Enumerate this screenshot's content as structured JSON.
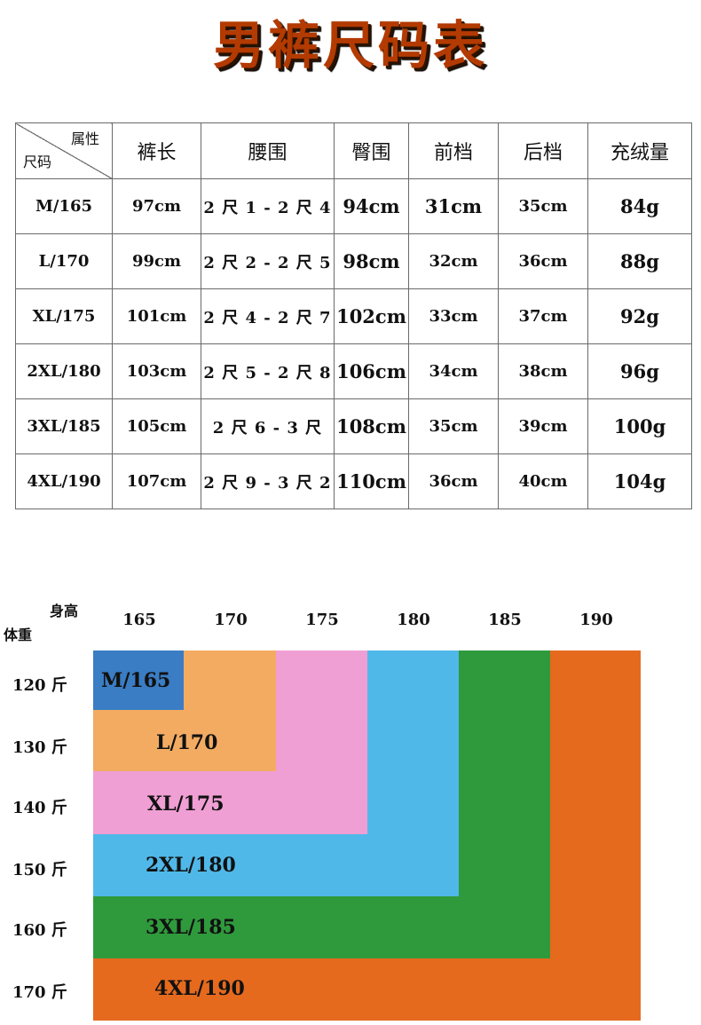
{
  "title": "男裤尺码表",
  "table": {
    "corner_top": "属性",
    "corner_bottom": "尺码",
    "headers": [
      "裤长",
      "腰围",
      "臀围",
      "前档",
      "后档",
      "充绒量"
    ],
    "rows": [
      {
        "size": "M/165",
        "length": "97cm",
        "waist": "2 尺 1 - 2 尺 4",
        "hip": "94cm",
        "front": "31cm",
        "back": "35cm",
        "fill": "84g"
      },
      {
        "size": "L/170",
        "length": "99cm",
        "waist": "2 尺 2 - 2 尺 5",
        "hip": "98cm",
        "front": "32cm",
        "back": "36cm",
        "fill": "88g"
      },
      {
        "size": "XL/175",
        "length": "101cm",
        "waist": "2 尺 4 - 2 尺 7",
        "hip": "102cm",
        "front": "33cm",
        "back": "37cm",
        "fill": "92g"
      },
      {
        "size": "2XL/180",
        "length": "103cm",
        "waist": "2 尺 5 - 2 尺 8",
        "hip": "106cm",
        "front": "34cm",
        "back": "38cm",
        "fill": "96g"
      },
      {
        "size": "3XL/185",
        "length": "105cm",
        "waist": "2 尺 6 - 3 尺",
        "hip": "108cm",
        "front": "35cm",
        "back": "39cm",
        "fill": "100g"
      },
      {
        "size": "4XL/190",
        "length": "107cm",
        "waist": "2 尺 9 - 3 尺 2",
        "hip": "110cm",
        "front": "36cm",
        "back": "40cm",
        "fill": "104g"
      }
    ]
  },
  "chart": {
    "height_label": "身高",
    "weight_label": "体重",
    "heights": [
      "165",
      "170",
      "175",
      "180",
      "185",
      "190"
    ],
    "weights": [
      "120 斤",
      "130 斤",
      "140 斤",
      "150 斤",
      "160 斤",
      "170 斤"
    ],
    "sizes": [
      {
        "label": "M/165",
        "color": "#3a7dc4"
      },
      {
        "label": "L/170",
        "color": "#f3ab62"
      },
      {
        "label": "XL/175",
        "color": "#ef9fd4"
      },
      {
        "label": "2XL/180",
        "color": "#4fb8e8"
      },
      {
        "label": "3XL/185",
        "color": "#2f9a3c"
      },
      {
        "label": "4XL/190",
        "color": "#e56a1e"
      }
    ]
  }
}
